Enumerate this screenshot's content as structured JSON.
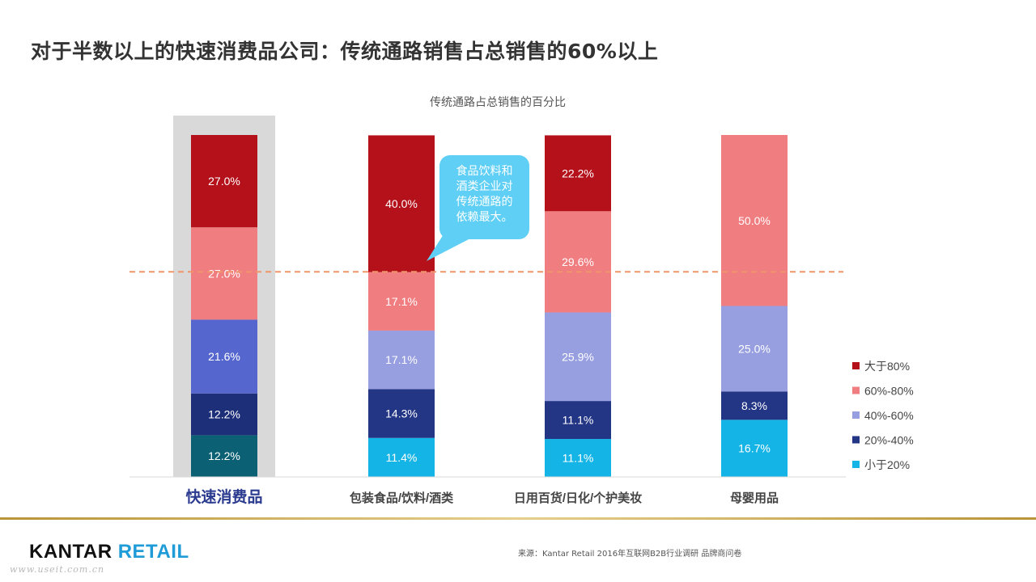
{
  "headline": "对于半数以上的快速消费品公司：传统通路销售占总销售的60%以上",
  "chart_data": {
    "type": "bar",
    "stacked": true,
    "title": "传统通路占总销售的百分比",
    "categories": [
      "快速消费品",
      "包装食品/饮料/酒类",
      "日用百货/日化/个护美妆",
      "母婴用品"
    ],
    "highlighted_category": "快速消费品",
    "series": [
      {
        "name": "小于20%",
        "color": "#15b4e6",
        "values": [
          12.2,
          11.4,
          11.1,
          16.7
        ],
        "labels": [
          "12.2%",
          "11.4%",
          "11.1%",
          "16.7%"
        ]
      },
      {
        "name": "20%-40%",
        "color": "#233585",
        "values": [
          12.2,
          14.3,
          11.1,
          8.3
        ],
        "labels": [
          "12.2%",
          "14.3%",
          "11.1%",
          "8.3%"
        ]
      },
      {
        "name": "40%-60%",
        "color": "#979fe0",
        "values": [
          21.6,
          17.1,
          25.9,
          25.0
        ],
        "labels": [
          "21.6%",
          "17.1%",
          "25.9%",
          "25.0%"
        ]
      },
      {
        "name": "60%-80%",
        "color": "#f07d80",
        "values": [
          27.0,
          17.1,
          29.6,
          50.0
        ],
        "labels": [
          "27.0%",
          "17.1%",
          "29.6%",
          "50.0%"
        ]
      },
      {
        "name": "大于80%",
        "color": "#b5111b",
        "values": [
          27.0,
          40.0,
          22.2,
          0
        ],
        "labels": [
          "27.0%",
          "40.0%",
          "22.2%",
          ""
        ]
      }
    ],
    "highlight_colors": [
      "#0b6173",
      "#1e2f7a",
      "#5567cf",
      "#f07d80",
      "#b5111b"
    ],
    "reference_line": {
      "value": 60,
      "color": "#f0956a",
      "style": "dashed"
    },
    "ylim": [
      0,
      100
    ],
    "legend_position": "right",
    "grid": false,
    "callout": {
      "text": [
        "食品饮料和",
        "酒类企业对",
        "传统通路的",
        "依赖最大。"
      ],
      "color": "#5fcff5",
      "points_to": "包装食品/饮料/酒类"
    }
  },
  "footer": {
    "logo_kantar": "KANTAR",
    "logo_retail": "RETAIL",
    "source": "来源：Kantar Retail 2016年互联网B2B行业调研 品牌商问卷",
    "watermark": "www.useit.com.cn"
  }
}
